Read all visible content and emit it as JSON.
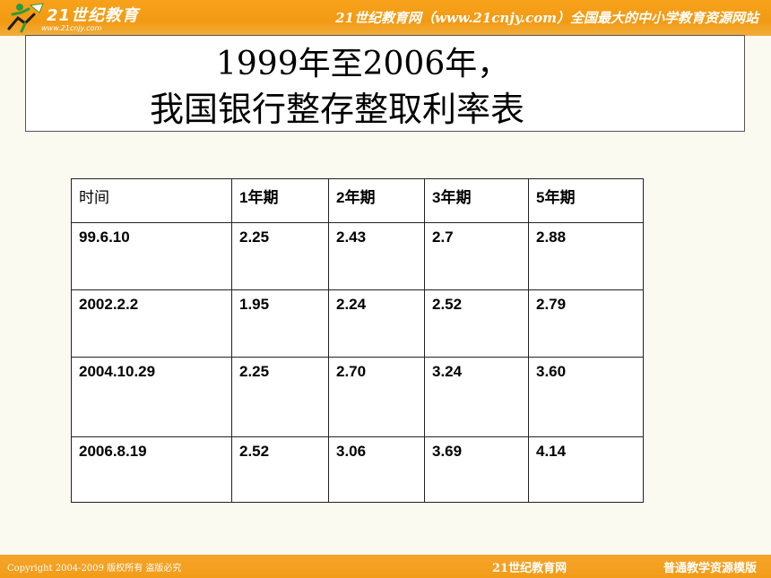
{
  "header": {
    "logo_name": "21世纪教育",
    "logo_url": "www.21cnjy.com",
    "slogan": "21世纪教育网（www.21cnjy.com）全国最大的中小学教育资源网站"
  },
  "title": {
    "line1": "1999年至2006年，",
    "line2": "我国银行整存整取利率表"
  },
  "table": {
    "headers": [
      "时间",
      "1年期",
      "2年期",
      "3年期",
      "5年期"
    ],
    "rows": [
      [
        "99.6.10",
        "2.25",
        "2.43",
        "2.7",
        "2.88"
      ],
      [
        "2002.2.2",
        "1.95",
        "2.24",
        "2.52",
        "2.79"
      ],
      [
        "2004.10.29",
        "2.25",
        "2.70",
        "3.24",
        "3.60"
      ],
      [
        "2006.8.19",
        "2.52",
        "3.06",
        "3.69",
        "4.14"
      ]
    ]
  },
  "footer": {
    "copyright": "Copyright 2004-2009 版权所有 盗版必究",
    "brand": "21世纪教育网",
    "template": "普通教学资源模版"
  },
  "colors": {
    "band_orange": "#f39a14",
    "background": "#fbfaf0",
    "logo_green": "#2e9a3a"
  }
}
